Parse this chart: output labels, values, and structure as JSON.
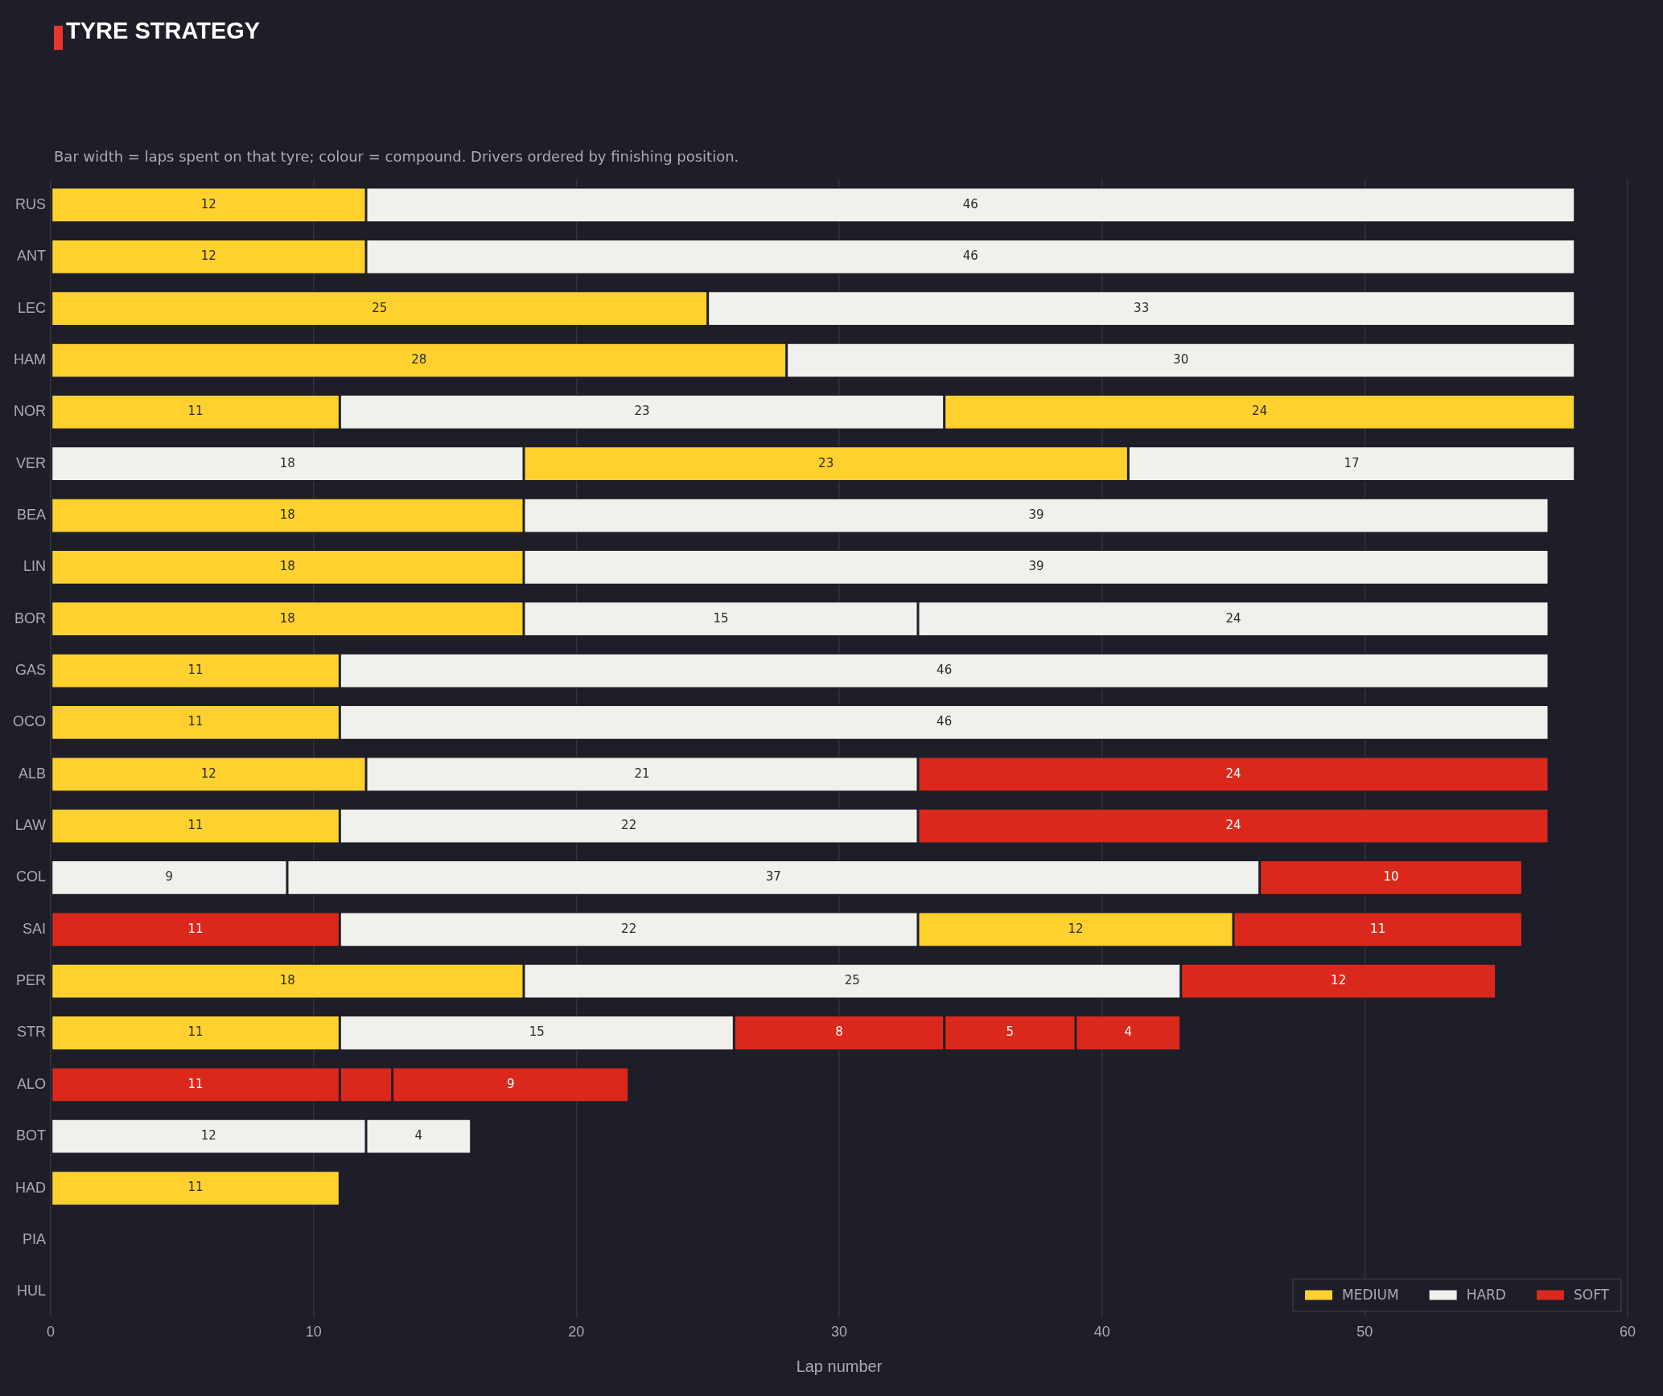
{
  "chart_data": {
    "type": "bar",
    "orientation": "horizontal",
    "stacked": true,
    "title": "TYRE STRATEGY",
    "subtitle": "Bar width = laps spent on that tyre; colour = compound. Drivers ordered by finishing position.",
    "xlabel": "Lap number",
    "categories": [
      "RUS",
      "ANT",
      "LEC",
      "HAM",
      "NOR",
      "VER",
      "BEA",
      "LIN",
      "BOR",
      "GAS",
      "OCO",
      "ALB",
      "LAW",
      "COL",
      "SAI",
      "PER",
      "STR",
      "ALO",
      "BOT",
      "HAD",
      "PIA",
      "HUL"
    ],
    "xlim": [
      0,
      60
    ],
    "xticks": [
      0,
      10,
      20,
      30,
      40,
      50,
      60
    ],
    "grid": "x",
    "legend": "bottom right",
    "series": [
      {
        "name": "MEDIUM",
        "color": "#ffd12e",
        "values": [
          12,
          12,
          25,
          28,
          11,
          null,
          18,
          18,
          18,
          11,
          11,
          12,
          11,
          null,
          null,
          18,
          11,
          null,
          null,
          11,
          null,
          null
        ],
        "value_labels": [
          "12",
          "12",
          "25",
          "28",
          "11",
          null,
          "18",
          "18",
          "18",
          "11",
          "11",
          "12",
          "11",
          null,
          null,
          "18",
          "11",
          null,
          null,
          "11",
          null,
          null
        ]
      },
      {
        "name": "HARD",
        "color": "#f0f0ec",
        "values": [
          null,
          null,
          null,
          null,
          null,
          18,
          null,
          null,
          null,
          null,
          null,
          null,
          null,
          9,
          null,
          null,
          null,
          null,
          12,
          null,
          null,
          null
        ],
        "value_labels": [
          null,
          null,
          null,
          null,
          null,
          "18",
          null,
          null,
          null,
          null,
          null,
          null,
          null,
          "9",
          null,
          null,
          null,
          null,
          "12",
          null,
          null,
          null
        ]
      },
      {
        "name": "SOFT",
        "color": "#da291c",
        "values": [
          null,
          null,
          null,
          null,
          null,
          null,
          null,
          null,
          null,
          null,
          null,
          null,
          null,
          null,
          11,
          null,
          null,
          11,
          null,
          null,
          null,
          null
        ],
        "value_labels": [
          null,
          null,
          null,
          null,
          null,
          null,
          null,
          null,
          null,
          null,
          null,
          null,
          null,
          null,
          "11",
          null,
          null,
          "11",
          null,
          null,
          null,
          null
        ]
      },
      {
        "color": "#f0f0ec",
        "values": [
          46,
          46,
          33,
          30,
          23,
          null,
          39,
          39,
          15,
          46,
          46,
          21,
          22,
          37,
          22,
          25,
          15,
          null,
          4,
          null,
          null,
          null
        ],
        "value_labels": [
          "46",
          "46",
          "33",
          "30",
          "23",
          null,
          "39",
          "39",
          "15",
          "46",
          "46",
          "21",
          "22",
          "37",
          "22",
          "25",
          "15",
          null,
          "4",
          null,
          null,
          null
        ]
      },
      {
        "color": "#ffd12e",
        "values": [
          null,
          null,
          null,
          null,
          null,
          23,
          null,
          null,
          null,
          null,
          null,
          null,
          null,
          null,
          null,
          null,
          null,
          null,
          null,
          null,
          null,
          null
        ],
        "value_labels": [
          null,
          null,
          null,
          null,
          null,
          "23",
          null,
          null,
          null,
          null,
          null,
          null,
          null,
          null,
          null,
          null,
          null,
          null,
          null,
          null,
          null,
          null
        ]
      },
      {
        "color": "#da291c",
        "values": [
          null,
          null,
          null,
          null,
          null,
          null,
          null,
          null,
          null,
          null,
          null,
          null,
          null,
          null,
          null,
          null,
          null,
          2,
          null,
          null,
          null,
          null
        ],
        "value_labels": [
          null,
          null,
          null,
          null,
          null,
          null,
          null,
          null,
          null,
          null,
          null,
          null,
          null,
          null,
          null,
          null,
          null,
          null,
          null,
          null,
          null,
          null
        ]
      },
      {
        "color": "#ffd12e",
        "values": [
          null,
          null,
          null,
          null,
          24,
          null,
          null,
          null,
          null,
          null,
          null,
          null,
          null,
          null,
          12,
          null,
          null,
          null,
          null,
          null,
          null,
          null
        ],
        "value_labels": [
          null,
          null,
          null,
          null,
          "24",
          null,
          null,
          null,
          null,
          null,
          null,
          null,
          null,
          null,
          "12",
          null,
          null,
          null,
          null,
          null,
          null,
          null
        ]
      },
      {
        "color": "#f0f0ec",
        "values": [
          null,
          null,
          null,
          null,
          null,
          17,
          null,
          null,
          24,
          null,
          null,
          null,
          null,
          null,
          null,
          null,
          null,
          null,
          null,
          null,
          null,
          null
        ],
        "value_labels": [
          null,
          null,
          null,
          null,
          null,
          "17",
          null,
          null,
          "24",
          null,
          null,
          null,
          null,
          null,
          null,
          null,
          null,
          null,
          null,
          null,
          null,
          null
        ]
      },
      {
        "color": "#da291c",
        "values": [
          null,
          null,
          null,
          null,
          null,
          null,
          null,
          null,
          null,
          null,
          null,
          24,
          24,
          10,
          null,
          12,
          8,
          9,
          null,
          null,
          null,
          null
        ],
        "value_labels": [
          null,
          null,
          null,
          null,
          null,
          null,
          null,
          null,
          null,
          null,
          null,
          "24",
          "24",
          "10",
          null,
          "12",
          "8",
          "9",
          null,
          null,
          null,
          null
        ]
      },
      {
        "color": "#da291c",
        "values": [
          null,
          null,
          null,
          null,
          null,
          null,
          null,
          null,
          null,
          null,
          null,
          null,
          null,
          null,
          11,
          null,
          5,
          null,
          null,
          null,
          null,
          null
        ],
        "value_labels": [
          null,
          null,
          null,
          null,
          null,
          null,
          null,
          null,
          null,
          null,
          null,
          null,
          null,
          null,
          "11",
          null,
          "5",
          null,
          null,
          null,
          null,
          null
        ]
      },
      {
        "color": "#da291c",
        "values": [
          null,
          null,
          null,
          null,
          null,
          null,
          null,
          null,
          null,
          null,
          null,
          null,
          null,
          null,
          null,
          null,
          4,
          null,
          null,
          null,
          null,
          null
        ],
        "value_labels": [
          null,
          null,
          null,
          null,
          null,
          null,
          null,
          null,
          null,
          null,
          null,
          null,
          null,
          null,
          null,
          null,
          "4",
          null,
          null,
          null,
          null,
          null
        ]
      }
    ]
  }
}
